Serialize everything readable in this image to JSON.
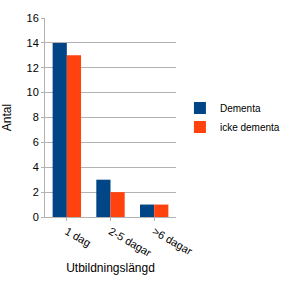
{
  "chart_data": {
    "type": "bar",
    "x_label": "Utbildningslängd",
    "y_label": "Antal",
    "categories": [
      "1 dag",
      "2-5 dagar",
      ">6 dagar"
    ],
    "series": [
      {
        "name": "Dementa",
        "color": "#004586",
        "values": [
          14,
          3,
          1
        ]
      },
      {
        "name": "icke dementa",
        "color": "#ff420e",
        "values": [
          13,
          2,
          1
        ]
      }
    ],
    "ylim": [
      0,
      16
    ],
    "yticks": [
      0,
      2,
      4,
      6,
      8,
      10,
      12,
      14,
      16
    ],
    "grid": true,
    "legend": "right"
  }
}
